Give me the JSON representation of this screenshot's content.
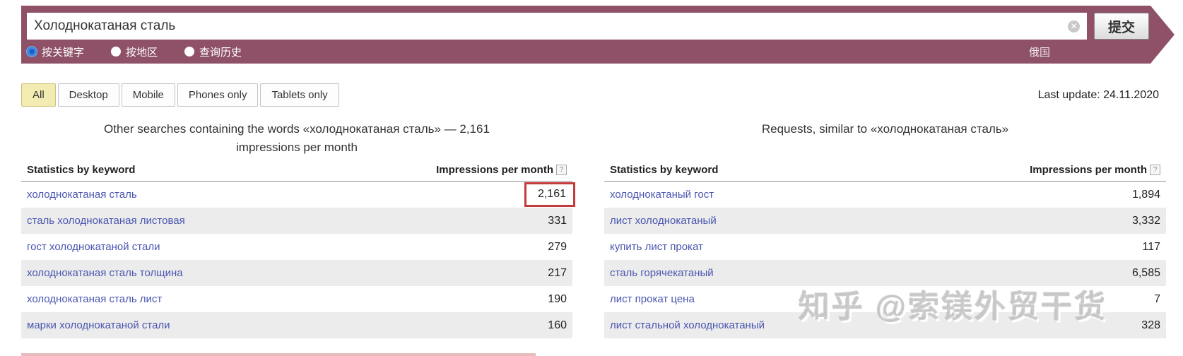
{
  "search": {
    "query": "Холоднокатаная сталь",
    "submit_label": "提交",
    "region_label": "俄国",
    "radios": [
      {
        "label": "按关键字",
        "selected": true
      },
      {
        "label": "按地区",
        "selected": false
      },
      {
        "label": "查询历史",
        "selected": false
      }
    ]
  },
  "tabs": [
    {
      "label": "All",
      "selected": true
    },
    {
      "label": "Desktop",
      "selected": false
    },
    {
      "label": "Mobile",
      "selected": false
    },
    {
      "label": "Phones only",
      "selected": false
    },
    {
      "label": "Tablets only",
      "selected": false
    }
  ],
  "last_update": "Last update: 24.11.2020",
  "panels": [
    {
      "title": "Other searches containing the words «холоднокатаная сталь» — 2,161 impressions per month",
      "col_keyword": "Statistics by keyword",
      "col_value": "Impressions per month",
      "help_icon": "?",
      "rows": [
        {
          "keyword": "холоднокатаная сталь",
          "value": "2,161",
          "highlighted": true
        },
        {
          "keyword": "сталь холоднокатаная листовая",
          "value": "331",
          "highlighted": false
        },
        {
          "keyword": "гост холоднокатаной стали",
          "value": "279",
          "highlighted": false
        },
        {
          "keyword": "холоднокатаная сталь толщина",
          "value": "217",
          "highlighted": false
        },
        {
          "keyword": "холоднокатаная сталь лист",
          "value": "190",
          "highlighted": false
        },
        {
          "keyword": "марки холоднокатаной стали",
          "value": "160",
          "highlighted": false
        }
      ]
    },
    {
      "title": "Requests, similar to «холоднокатаная сталь»",
      "col_keyword": "Statistics by keyword",
      "col_value": "Impressions per month",
      "help_icon": "?",
      "rows": [
        {
          "keyword": "холоднокатаный гост",
          "value": "1,894",
          "highlighted": false
        },
        {
          "keyword": "лист холоднокатаный",
          "value": "3,332",
          "highlighted": false
        },
        {
          "keyword": "купить лист прокат",
          "value": "117",
          "highlighted": false
        },
        {
          "keyword": "сталь горячекатаный",
          "value": "6,585",
          "highlighted": false
        },
        {
          "keyword": "лист прокат цена",
          "value": "7",
          "highlighted": false
        },
        {
          "keyword": "лист стальной холоднокатаный",
          "value": "328",
          "highlighted": false
        }
      ]
    }
  ],
  "watermark": "知乎 @索镁外贸干货",
  "icons": {
    "clear_icon": "✕"
  },
  "colors": {
    "ribbon_maroon": "#8e5168",
    "link_blue": "#4a56b0",
    "row_alt_gray": "#ececec",
    "tab_selected_bg": "#f3ecb2",
    "highlight_box_red": "#c53b3b",
    "radio_selected_blue": "#3f8ae0"
  }
}
